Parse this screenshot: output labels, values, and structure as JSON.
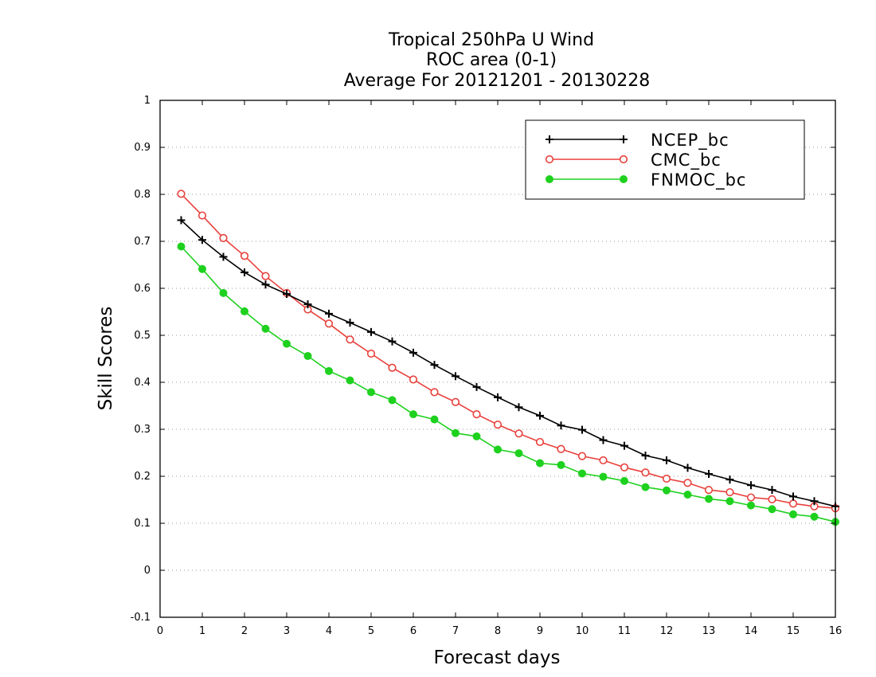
{
  "chart_data": {
    "type": "line",
    "title_lines": [
      "Tropical 250hPa U Wind",
      "ROC area (0-1)",
      "Average For 20121201 - 20130228"
    ],
    "xlabel": "Forecast days",
    "ylabel": "Skill Scores",
    "xlim": [
      0,
      16
    ],
    "ylim": [
      -0.1,
      1
    ],
    "xticks": [
      0,
      1,
      2,
      3,
      4,
      5,
      6,
      7,
      8,
      9,
      10,
      11,
      12,
      13,
      14,
      15,
      16
    ],
    "xtick_labels": [
      "0",
      "1",
      "2",
      "3",
      "4",
      "5",
      "6",
      "7",
      "8",
      "9",
      "10",
      "11",
      "12",
      "13",
      "14",
      "15",
      "16"
    ],
    "yticks": [
      -0.1,
      0,
      0.1,
      0.2,
      0.3,
      0.4,
      0.5,
      0.6,
      0.7,
      0.8,
      0.9,
      1
    ],
    "ytick_labels": [
      "-0.1",
      "0",
      "0.1",
      "0.2",
      "0.3",
      "0.4",
      "0.5",
      "0.6",
      "0.7",
      "0.8",
      "0.9",
      "1"
    ],
    "grid": "horizontal-dotted",
    "legend_position": "top-right",
    "x": [
      0.5,
      1,
      1.5,
      2,
      2.5,
      3,
      3.5,
      4,
      4.5,
      5,
      5.5,
      6,
      6.5,
      7,
      7.5,
      8,
      8.5,
      9,
      9.5,
      10,
      10.5,
      11,
      11.5,
      12,
      12.5,
      13,
      13.5,
      14,
      14.5,
      15,
      15.5,
      16
    ],
    "series": [
      {
        "name": "NCEP_bc",
        "color": "#000000",
        "marker": "plus",
        "values": [
          0.745,
          0.703,
          0.667,
          0.634,
          0.608,
          0.588,
          0.566,
          0.546,
          0.527,
          0.507,
          0.487,
          0.463,
          0.437,
          0.413,
          0.39,
          0.368,
          0.347,
          0.329,
          0.308,
          0.299,
          0.277,
          0.265,
          0.244,
          0.234,
          0.218,
          0.205,
          0.193,
          0.181,
          0.171,
          0.157,
          0.147,
          0.136
        ]
      },
      {
        "name": "CMC_bc",
        "color": "#e8413c",
        "marker": "open-circle",
        "values": [
          0.801,
          0.755,
          0.707,
          0.669,
          0.626,
          0.59,
          0.555,
          0.525,
          0.491,
          0.461,
          0.431,
          0.406,
          0.379,
          0.358,
          0.332,
          0.31,
          0.291,
          0.273,
          0.258,
          0.243,
          0.234,
          0.219,
          0.208,
          0.195,
          0.186,
          0.171,
          0.166,
          0.155,
          0.151,
          0.142,
          0.136,
          0.132
        ]
      },
      {
        "name": "FNMOC_bc",
        "color": "#1fd11f",
        "marker": "filled-circle",
        "values": [
          0.689,
          0.641,
          0.59,
          0.551,
          0.514,
          0.482,
          0.456,
          0.424,
          0.404,
          0.379,
          0.362,
          0.332,
          0.321,
          0.292,
          0.285,
          0.257,
          0.249,
          0.228,
          0.224,
          0.206,
          0.199,
          0.19,
          0.177,
          0.17,
          0.161,
          0.152,
          0.147,
          0.138,
          0.13,
          0.119,
          0.114,
          0.103
        ]
      }
    ]
  }
}
